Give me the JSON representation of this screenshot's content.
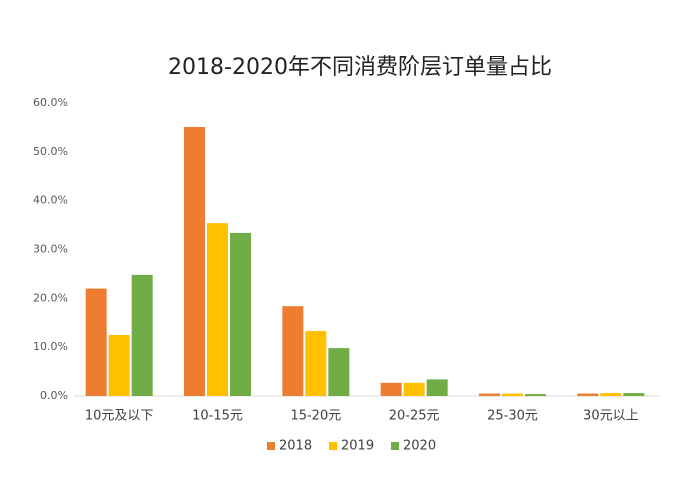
{
  "chart_data": {
    "type": "bar",
    "title": "2018-2020年不同消费阶层订单量占比",
    "categories": [
      "10元及以下",
      "10-15元",
      "15-20元",
      "20-25元",
      "25-30元",
      "30元以上"
    ],
    "series": [
      {
        "name": "2018",
        "color": "#ED7D31",
        "values": [
          22.0,
          55.1,
          18.4,
          2.7,
          0.5,
          0.5
        ]
      },
      {
        "name": "2019",
        "color": "#FFC000",
        "values": [
          12.5,
          35.4,
          13.3,
          2.7,
          0.5,
          0.6
        ]
      },
      {
        "name": "2020",
        "color": "#70AD47",
        "values": [
          24.8,
          33.4,
          9.8,
          3.4,
          0.4,
          0.6
        ]
      }
    ],
    "ylim": [
      0,
      60
    ],
    "yticks": [
      {
        "value": 0,
        "label": "0.0%"
      },
      {
        "value": 10,
        "label": "10.0%"
      },
      {
        "value": 20,
        "label": "20.0%"
      },
      {
        "value": 30,
        "label": "30.0%"
      },
      {
        "value": 40,
        "label": "40.0%"
      },
      {
        "value": 50,
        "label": "50.0%"
      },
      {
        "value": 60,
        "label": "60.0%"
      }
    ],
    "legend": "bottom"
  }
}
